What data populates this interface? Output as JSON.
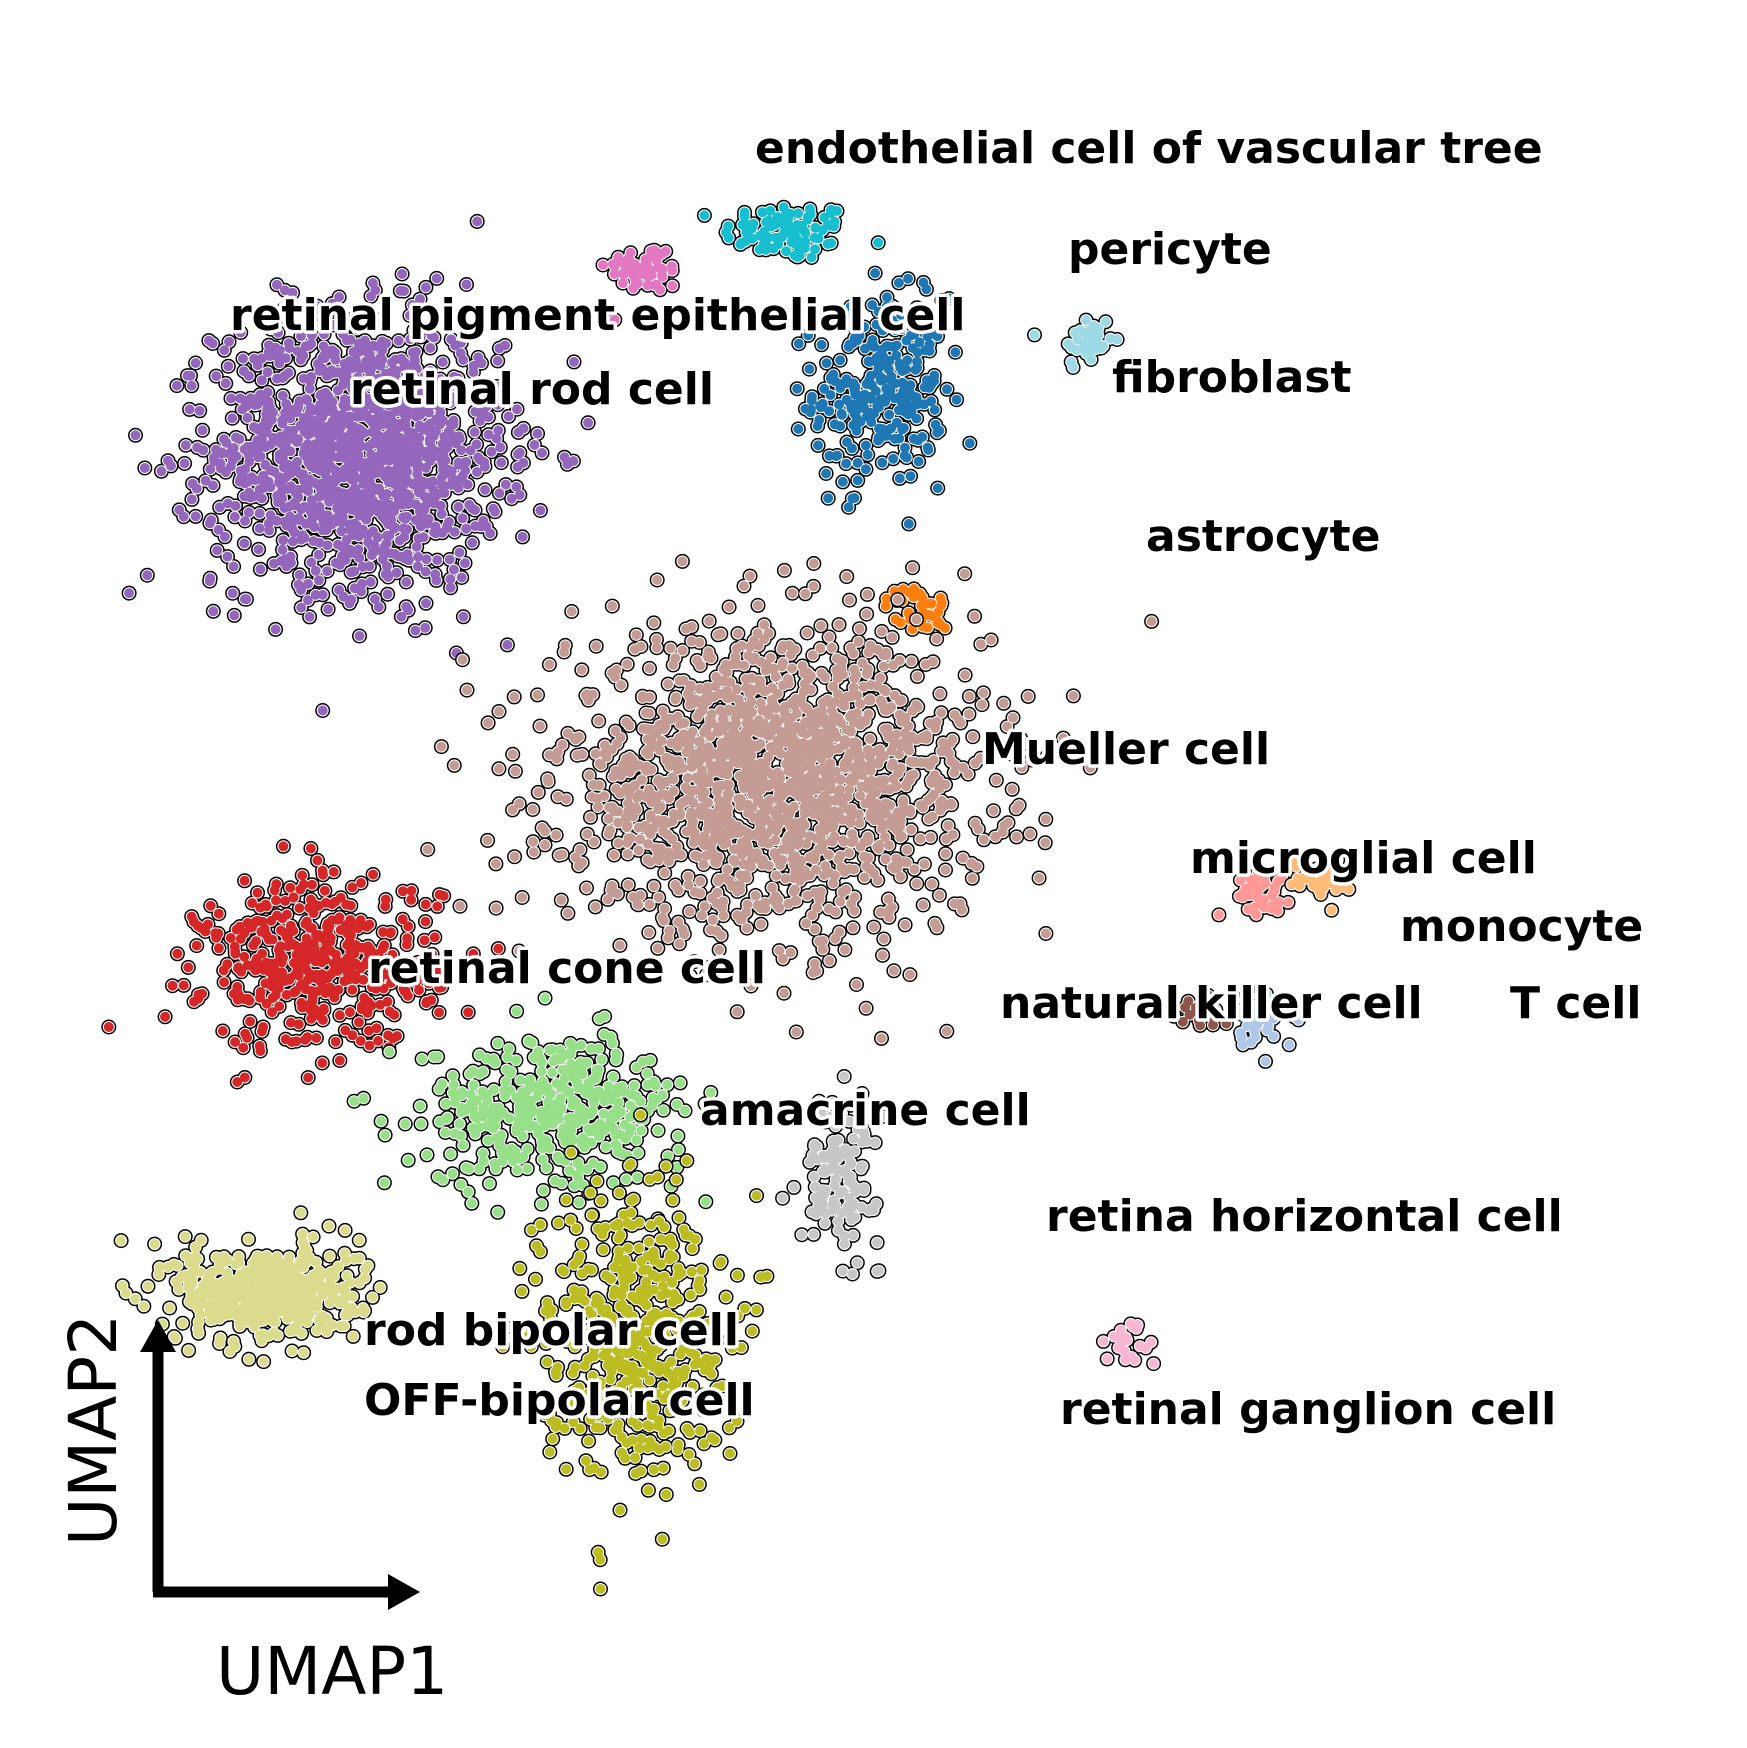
{
  "chart_data": {
    "type": "scatter",
    "title": "",
    "xlabel": "UMAP1",
    "ylabel": "UMAP2",
    "grid": false,
    "legend": "on-data labels",
    "clusters": [
      {
        "name": "endothelial cell of vascular tree",
        "color": "#17becf",
        "center": [
          0.46,
          0.9
        ],
        "spread": [
          0.025,
          0.012
        ],
        "n": 90
      },
      {
        "name": "pericyte",
        "color": "#9edae5",
        "center": [
          0.69,
          0.81
        ],
        "spread": [
          0.01,
          0.012
        ],
        "n": 40
      },
      {
        "name": "retinal pigment epithelial cell",
        "color": "#e377c2",
        "center": [
          0.35,
          0.87
        ],
        "spread": [
          0.015,
          0.01
        ],
        "n": 55
      },
      {
        "name": "fibroblast",
        "color": "#1f77b4",
        "center": [
          0.53,
          0.77
        ],
        "spread": [
          0.025,
          0.038
        ],
        "n": 260
      },
      {
        "name": "retinal rod cell",
        "color": "#9467bd",
        "center": [
          0.13,
          0.72
        ],
        "spread": [
          0.055,
          0.055
        ],
        "n": 1300
      },
      {
        "name": "astrocyte",
        "color": "#ff7f0e",
        "center": [
          0.56,
          0.59
        ],
        "spread": [
          0.012,
          0.01
        ],
        "n": 40
      },
      {
        "name": "Mueller cell",
        "color": "#c49c94",
        "center": [
          0.45,
          0.45
        ],
        "spread": [
          0.08,
          0.06
        ],
        "n": 1600
      },
      {
        "name": "microglial cell",
        "color": "#ff9896",
        "center": [
          0.82,
          0.36
        ],
        "spread": [
          0.012,
          0.008
        ],
        "n": 45
      },
      {
        "name": "monocyte",
        "color": "#ffbb78",
        "center": [
          0.87,
          0.37
        ],
        "spread": [
          0.012,
          0.008
        ],
        "n": 40
      },
      {
        "name": "retinal cone cell",
        "color": "#d62728",
        "center": [
          0.1,
          0.3
        ],
        "spread": [
          0.045,
          0.035
        ],
        "n": 420
      },
      {
        "name": "natural killer cell",
        "color": "#8c564b",
        "center": [
          0.78,
          0.26
        ],
        "spread": [
          0.01,
          0.006
        ],
        "n": 22
      },
      {
        "name": "T cell",
        "color": "#aec7e8",
        "center": [
          0.82,
          0.25
        ],
        "spread": [
          0.01,
          0.012
        ],
        "n": 40
      },
      {
        "name": "amacrine cell",
        "color": "#98df8a",
        "center": [
          0.28,
          0.18
        ],
        "spread": [
          0.05,
          0.03
        ],
        "n": 420
      },
      {
        "name": "retina horizontal cell",
        "color": "#c7c7c7",
        "center": [
          0.5,
          0.13
        ],
        "spread": [
          0.015,
          0.03
        ],
        "n": 130
      },
      {
        "name": "rod bipolar cell",
        "color": "#dbdb8d",
        "center": [
          0.06,
          0.03
        ],
        "spread": [
          0.035,
          0.02
        ],
        "n": 480
      },
      {
        "name": "OFF-bipolar cell",
        "color": "#bcbd22",
        "center": [
          0.34,
          0.0
        ],
        "spread": [
          0.035,
          0.06
        ],
        "n": 460
      },
      {
        "name": "retinal ganglion cell",
        "color": "#f7b6d2",
        "center": [
          0.72,
          -0.01
        ],
        "spread": [
          0.012,
          0.01
        ],
        "n": 22
      }
    ]
  }
}
